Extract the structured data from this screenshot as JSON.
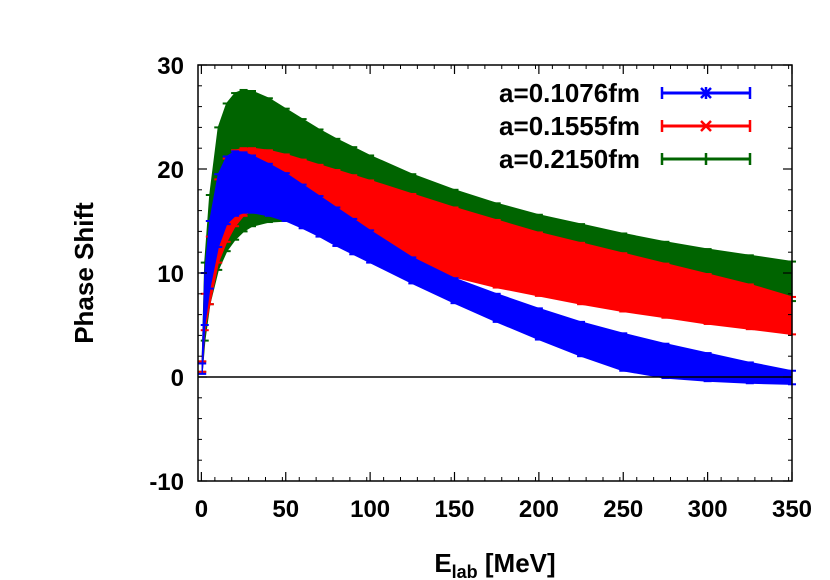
{
  "chart_data": {
    "type": "area",
    "xlabel_main": "E",
    "xlabel_sub": "lab",
    "xlabel_unit": " [MeV]",
    "ylabel": "Phase Shift",
    "xlim": [
      -2,
      350
    ],
    "ylim": [
      -10,
      30
    ],
    "xticks": [
      0,
      50,
      100,
      150,
      200,
      250,
      300,
      350
    ],
    "yticks": [
      -10,
      0,
      10,
      20,
      30
    ],
    "grid": false,
    "legend_position": "top-right",
    "zero_line": true,
    "x": [
      0.5,
      2,
      5,
      10,
      15,
      20,
      25,
      30,
      40,
      50,
      60,
      70,
      80,
      90,
      100,
      125,
      150,
      175,
      200,
      225,
      250,
      275,
      300,
      325,
      350
    ],
    "series": [
      {
        "name": "a=0.2150fm",
        "color": "#006400",
        "marker": "plus",
        "lower": [
          0.5,
          3.5,
          7.0,
          10.3,
          12.1,
          13.2,
          14.0,
          14.5,
          14.9,
          15.0,
          14.6,
          14.0,
          13.4,
          12.9,
          12.6,
          12.5,
          12.3,
          12.1,
          11.7,
          11.2,
          10.6,
          9.9,
          9.1,
          8.3,
          7.3
        ],
        "upper": [
          1.5,
          11.0,
          17.5,
          24.0,
          26.3,
          27.3,
          27.6,
          27.5,
          26.8,
          25.8,
          24.8,
          23.8,
          22.9,
          22.1,
          21.3,
          19.5,
          18.0,
          16.7,
          15.6,
          14.7,
          13.8,
          13.0,
          12.3,
          11.7,
          11.1
        ]
      },
      {
        "name": "a=0.1555fm",
        "color": "#ff0000",
        "marker": "cross",
        "lower": [
          0.5,
          4.5,
          7.0,
          11.0,
          13.0,
          14.5,
          15.5,
          16.0,
          16.0,
          15.6,
          15.0,
          14.3,
          13.6,
          12.9,
          12.2,
          10.8,
          9.6,
          8.6,
          7.8,
          7.0,
          6.3,
          5.7,
          5.1,
          4.6,
          4.1
        ],
        "upper": [
          1.5,
          8.0,
          13.5,
          19.0,
          21.0,
          21.8,
          22.0,
          22.0,
          21.8,
          21.4,
          20.9,
          20.4,
          19.9,
          19.4,
          18.9,
          17.6,
          16.3,
          15.1,
          13.9,
          12.9,
          11.9,
          10.9,
          9.9,
          8.9,
          7.7
        ]
      },
      {
        "name": "a=0.1076fm",
        "color": "#0000ff",
        "marker": "star",
        "lower": [
          0.3,
          5.0,
          8.5,
          12.5,
          14.7,
          15.5,
          15.8,
          15.8,
          15.5,
          15.0,
          14.3,
          13.5,
          12.6,
          11.8,
          11.0,
          9.0,
          7.1,
          5.3,
          3.6,
          2.0,
          0.6,
          -0.1,
          -0.4,
          -0.6,
          -0.7
        ],
        "upper": [
          1.3,
          10.0,
          15.0,
          19.5,
          21.2,
          21.7,
          21.6,
          21.3,
          20.5,
          19.6,
          18.5,
          17.4,
          16.3,
          15.2,
          14.1,
          11.5,
          9.5,
          8.0,
          6.6,
          5.3,
          4.2,
          3.2,
          2.3,
          1.4,
          0.6
        ]
      }
    ]
  }
}
